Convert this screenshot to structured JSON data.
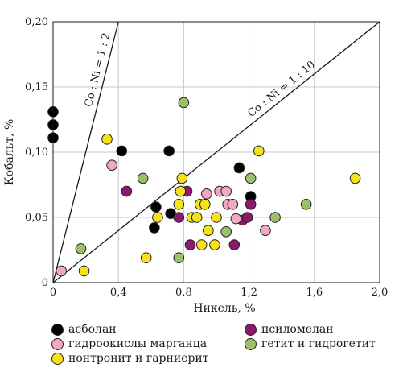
{
  "chart_data": {
    "type": "scatter",
    "xlabel": "Никель, %",
    "ylabel": "Кобальт, %",
    "xlim": [
      0,
      2.0
    ],
    "ylim": [
      0,
      0.2
    ],
    "x_ticks": [
      "0",
      "0,4",
      "0,8",
      "1,2",
      "1,6",
      "2,0"
    ],
    "y_ticks": [
      "0",
      "0,05",
      "0,10",
      "0,15",
      "0,20"
    ],
    "grid": true,
    "legend_position": "bottom",
    "ratio_lines": [
      {
        "label": "Co : Ni = 1 : 2",
        "slope": 0.5
      },
      {
        "label": "Co : Ni = 1 : 10",
        "slope": 0.1
      }
    ],
    "series": [
      {
        "name": "асболан",
        "color": "#000000",
        "points": [
          [
            0.0,
            0.131
          ],
          [
            0.0,
            0.121
          ],
          [
            0.0,
            0.111
          ],
          [
            0.42,
            0.101
          ],
          [
            0.71,
            0.101
          ],
          [
            1.14,
            0.088
          ],
          [
            1.21,
            0.066
          ],
          [
            0.63,
            0.058
          ],
          [
            0.72,
            0.053
          ],
          [
            0.62,
            0.042
          ]
        ]
      },
      {
        "name": "псиломелан",
        "color": "#8b1a6e",
        "points": [
          [
            0.45,
            0.07
          ],
          [
            0.82,
            0.07
          ],
          [
            0.77,
            0.05
          ],
          [
            0.84,
            0.029
          ],
          [
            1.11,
            0.029
          ],
          [
            1.16,
            0.048
          ],
          [
            1.19,
            0.05
          ],
          [
            1.21,
            0.06
          ]
        ]
      },
      {
        "name": "гидроокислы марганца",
        "color": "#f2a8c4",
        "points": [
          [
            0.36,
            0.09
          ],
          [
            0.05,
            0.009
          ],
          [
            0.94,
            0.068
          ],
          [
            1.02,
            0.07
          ],
          [
            1.06,
            0.07
          ],
          [
            1.07,
            0.06
          ],
          [
            1.1,
            0.06
          ],
          [
            1.12,
            0.049
          ],
          [
            1.3,
            0.04
          ]
        ]
      },
      {
        "name": "нонтронит и гарниерит",
        "color": "#f6e11b",
        "points": [
          [
            0.33,
            0.11
          ],
          [
            0.19,
            0.009
          ],
          [
            0.57,
            0.019
          ],
          [
            0.64,
            0.05
          ],
          [
            0.78,
            0.07
          ],
          [
            0.79,
            0.08
          ],
          [
            0.77,
            0.06
          ],
          [
            0.85,
            0.05
          ],
          [
            0.88,
            0.05
          ],
          [
            0.9,
            0.06
          ],
          [
            0.93,
            0.06
          ],
          [
            0.95,
            0.04
          ],
          [
            0.99,
            0.029
          ],
          [
            1.0,
            0.05
          ],
          [
            0.91,
            0.029
          ],
          [
            1.26,
            0.101
          ],
          [
            1.85,
            0.08
          ]
        ]
      },
      {
        "name": "гетит и гидрогетит",
        "color": "#9cbf6b",
        "points": [
          [
            0.8,
            0.138
          ],
          [
            0.55,
            0.08
          ],
          [
            0.17,
            0.026
          ],
          [
            0.77,
            0.019
          ],
          [
            1.06,
            0.039
          ],
          [
            1.21,
            0.08
          ],
          [
            1.36,
            0.05
          ],
          [
            1.55,
            0.06
          ]
        ]
      }
    ]
  },
  "legend": {
    "items": [
      {
        "label": "асболан",
        "color": "#000000"
      },
      {
        "label": "псиломелан",
        "color": "#8b1a6e"
      },
      {
        "label": "гидроокислы марганца",
        "color": "#f2a8c4"
      },
      {
        "label": "гетит и гидрогетит",
        "color": "#9cbf6b"
      },
      {
        "label": "нонтронит и гарниерит",
        "color": "#f6e11b"
      }
    ]
  }
}
